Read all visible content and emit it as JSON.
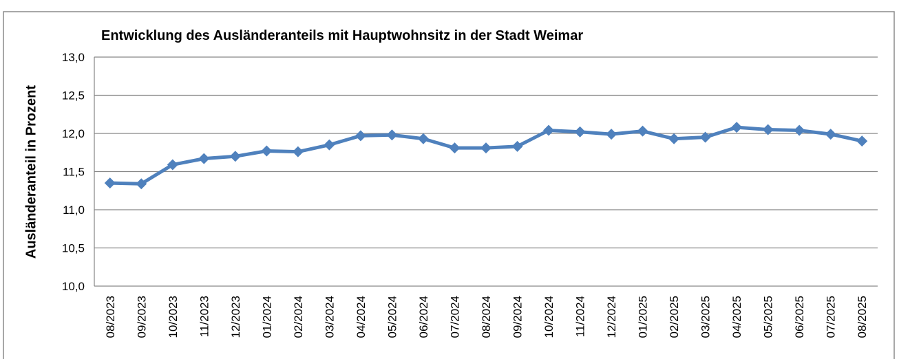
{
  "chart_data": {
    "type": "line",
    "title": "Entwicklung des Ausländeranteils  mit Hauptwohnsitz in der Stadt Weimar",
    "y_label": "Ausländeranteil in Prozent",
    "categories": [
      "08/2023",
      "09/2023",
      "10/2023",
      "11/2023",
      "12/2023",
      "01/2024",
      "02/2024",
      "03/2024",
      "04/2024",
      "05/2024",
      "06/2024",
      "07/2024",
      "08/2024",
      "09/2024",
      "10/2024",
      "11/2024",
      "12/2024",
      "01/2025",
      "02/2025",
      "03/2025",
      "04/2025",
      "05/2025",
      "06/2025",
      "07/2025",
      "08/2025"
    ],
    "series": [
      {
        "color": "#4f81bd",
        "values": [
          11.35,
          11.34,
          11.59,
          11.67,
          11.7,
          11.77,
          11.76,
          11.85,
          11.97,
          11.98,
          11.93,
          11.81,
          11.81,
          11.83,
          12.04,
          12.02,
          11.99,
          12.03,
          11.93,
          11.95,
          12.08,
          12.05,
          12.04,
          11.99,
          11.9
        ]
      }
    ],
    "ylim": [
      10,
      13
    ],
    "yticks": [
      {
        "value": 10,
        "label": "10,0"
      },
      {
        "value": 10.5,
        "label": "10,5"
      },
      {
        "value": 11,
        "label": "11,0"
      },
      {
        "value": 11.5,
        "label": "11,5"
      },
      {
        "value": 12,
        "label": "12,0"
      },
      {
        "value": 12.5,
        "label": "12,5"
      },
      {
        "value": 13,
        "label": "13,0"
      }
    ],
    "grid": true
  }
}
